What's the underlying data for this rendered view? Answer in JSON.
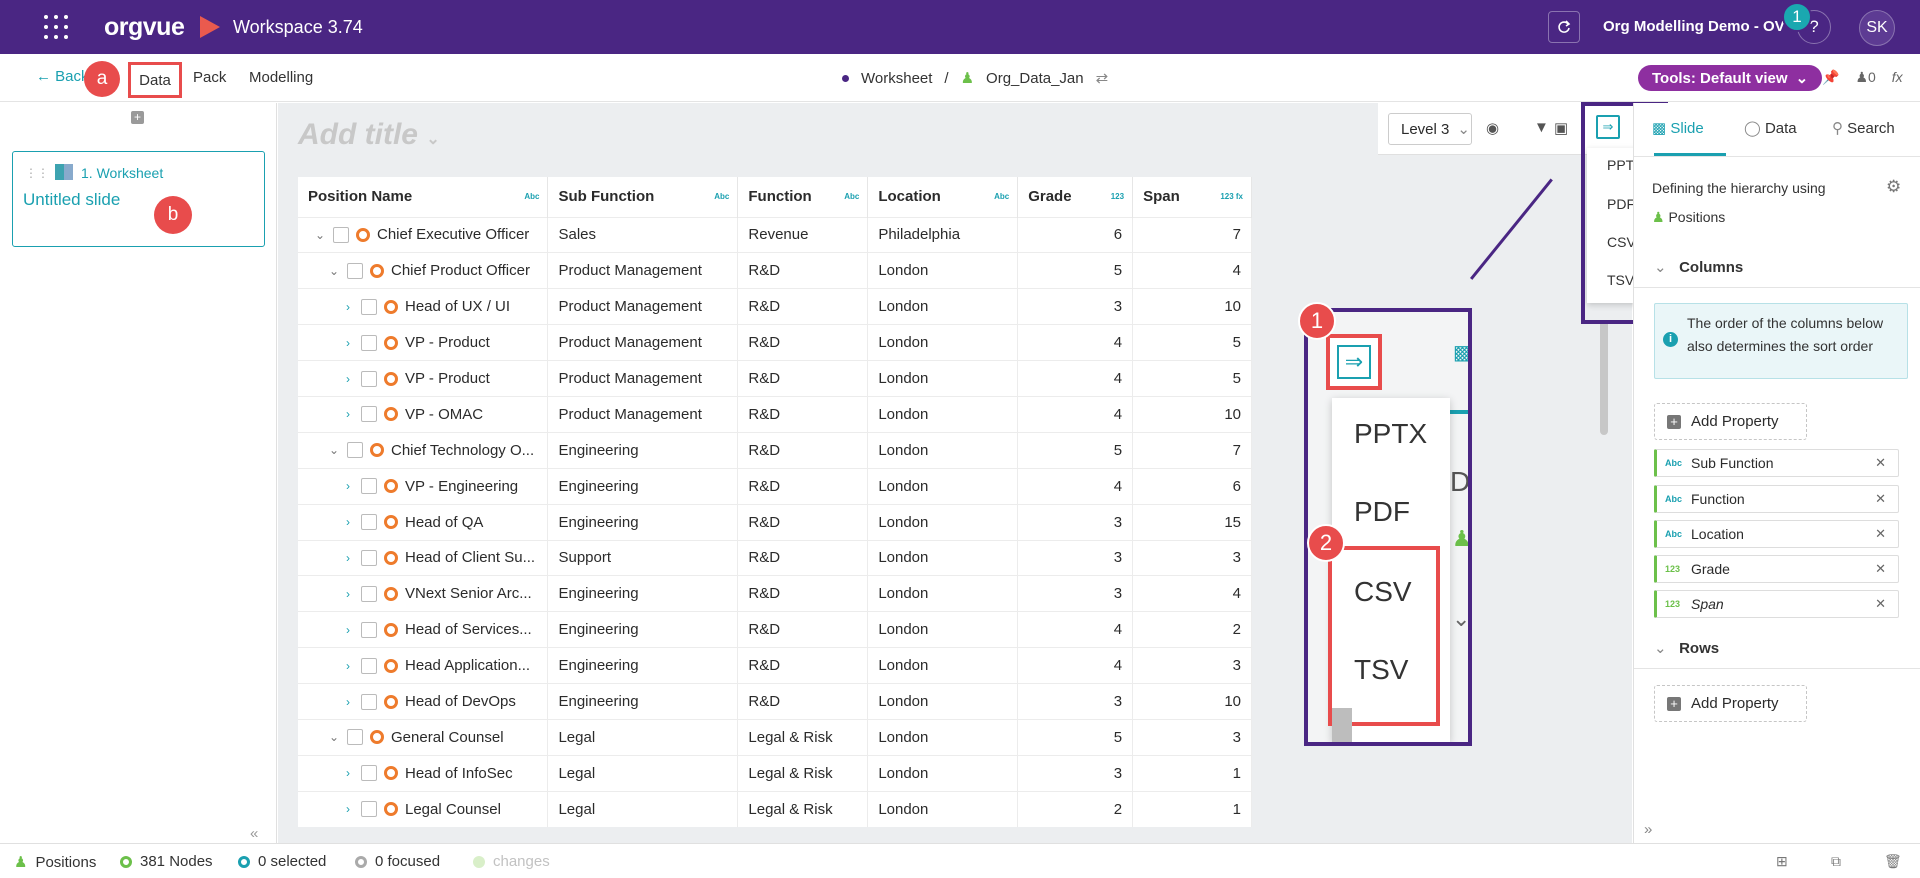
{
  "header": {
    "logo": "orgvue",
    "workspace": "Workspace 3.74",
    "dataset": "Org Modelling Demo - OV",
    "help": "?",
    "notification_count": "1",
    "avatar": "SK"
  },
  "subnav": {
    "back": "Back",
    "items": [
      "Data",
      "Pack",
      "Modelling"
    ],
    "breadcrumb": [
      "Worksheet",
      "/",
      "Org_Data_Jan"
    ],
    "tools": "Tools: Default view",
    "count": "0",
    "fx": "fx"
  },
  "callouts": {
    "a": "a",
    "b": "b",
    "one": "1",
    "two": "2"
  },
  "left": {
    "slide_label": "1. Worksheet",
    "slide_title": "Untitled slide"
  },
  "canvas": {
    "title_placeholder": "Add title",
    "level": "Level 3"
  },
  "table": {
    "headers": [
      {
        "label": "Position Name",
        "tag": "Abc"
      },
      {
        "label": "Sub Function",
        "tag": "Abc"
      },
      {
        "label": "Function",
        "tag": "Abc"
      },
      {
        "label": "Location",
        "tag": "Abc"
      },
      {
        "label": "Grade",
        "tag": "123"
      },
      {
        "label": "Span",
        "tag": "123 fx"
      }
    ],
    "rows": [
      {
        "name": "Chief Executive Officer",
        "sub": "Sales",
        "func": "Revenue",
        "loc": "Philadelphia",
        "grade": "6",
        "span": "7",
        "indent": 0,
        "expanded": true
      },
      {
        "name": "Chief Product Officer",
        "sub": "Product Management",
        "func": "R&D",
        "loc": "London",
        "grade": "5",
        "span": "4",
        "indent": 1,
        "expanded": true
      },
      {
        "name": "Head of UX / UI",
        "sub": "Product Management",
        "func": "R&D",
        "loc": "London",
        "grade": "3",
        "span": "10",
        "indent": 2,
        "expanded": false
      },
      {
        "name": "VP - Product",
        "sub": "Product Management",
        "func": "R&D",
        "loc": "London",
        "grade": "4",
        "span": "5",
        "indent": 2,
        "expanded": false
      },
      {
        "name": "VP - Product",
        "sub": "Product Management",
        "func": "R&D",
        "loc": "London",
        "grade": "4",
        "span": "5",
        "indent": 2,
        "expanded": false
      },
      {
        "name": "VP - OMAC",
        "sub": "Product Management",
        "func": "R&D",
        "loc": "London",
        "grade": "4",
        "span": "10",
        "indent": 2,
        "expanded": false
      },
      {
        "name": "Chief Technology O...",
        "sub": "Engineering",
        "func": "R&D",
        "loc": "London",
        "grade": "5",
        "span": "7",
        "indent": 1,
        "expanded": true
      },
      {
        "name": "VP - Engineering",
        "sub": "Engineering",
        "func": "R&D",
        "loc": "London",
        "grade": "4",
        "span": "6",
        "indent": 2,
        "expanded": false
      },
      {
        "name": "Head of QA",
        "sub": "Engineering",
        "func": "R&D",
        "loc": "London",
        "grade": "3",
        "span": "15",
        "indent": 2,
        "expanded": false
      },
      {
        "name": "Head of Client Su...",
        "sub": "Support",
        "func": "R&D",
        "loc": "London",
        "grade": "3",
        "span": "3",
        "indent": 2,
        "expanded": false
      },
      {
        "name": "VNext Senior Arc...",
        "sub": "Engineering",
        "func": "R&D",
        "loc": "London",
        "grade": "3",
        "span": "4",
        "indent": 2,
        "expanded": false
      },
      {
        "name": "Head of Services...",
        "sub": "Engineering",
        "func": "R&D",
        "loc": "London",
        "grade": "4",
        "span": "2",
        "indent": 2,
        "expanded": false
      },
      {
        "name": "Head Application...",
        "sub": "Engineering",
        "func": "R&D",
        "loc": "London",
        "grade": "4",
        "span": "3",
        "indent": 2,
        "expanded": false
      },
      {
        "name": "Head of DevOps",
        "sub": "Engineering",
        "func": "R&D",
        "loc": "London",
        "grade": "3",
        "span": "10",
        "indent": 2,
        "expanded": false
      },
      {
        "name": "General Counsel",
        "sub": "Legal",
        "func": "Legal & Risk",
        "loc": "London",
        "grade": "5",
        "span": "3",
        "indent": 1,
        "expanded": true
      },
      {
        "name": "Head of InfoSec",
        "sub": "Legal",
        "func": "Legal & Risk",
        "loc": "London",
        "grade": "3",
        "span": "1",
        "indent": 2,
        "expanded": false
      },
      {
        "name": "Legal Counsel",
        "sub": "Legal",
        "func": "Legal & Risk",
        "loc": "London",
        "grade": "2",
        "span": "1",
        "indent": 2,
        "expanded": false
      }
    ]
  },
  "export_menu": [
    "PPTX",
    "PDF",
    "CSV",
    "TSV"
  ],
  "zoom_side_text": [
    "De"
  ],
  "right": {
    "tabs": [
      "Slide",
      "Data",
      "Search"
    ],
    "hierarchy_text": "Defining the hierarchy using",
    "hierarchy_value": "Positions",
    "columns_head": "Columns",
    "info": "The order of the columns below also determines the sort order",
    "add_property": "Add Property",
    "columns": [
      {
        "type": "Abc",
        "label": "Sub Function",
        "italic": false
      },
      {
        "type": "Abc",
        "label": "Function",
        "italic": false
      },
      {
        "type": "Abc",
        "label": "Location",
        "italic": false
      },
      {
        "type": "123",
        "label": "Grade",
        "italic": false
      },
      {
        "type": "123",
        "label": "Span",
        "italic": true
      }
    ],
    "rows_head": "Rows"
  },
  "footer": {
    "positions": "Positions",
    "nodes": "381 Nodes",
    "selected": "0 selected",
    "focused": "0 focused",
    "changes": "changes"
  },
  "colors": {
    "brand": "#4a2683",
    "accent": "#1aa0b0",
    "callout": "#e84c4c",
    "node": "#ee7b2c",
    "tools": "#8e2fa0"
  }
}
